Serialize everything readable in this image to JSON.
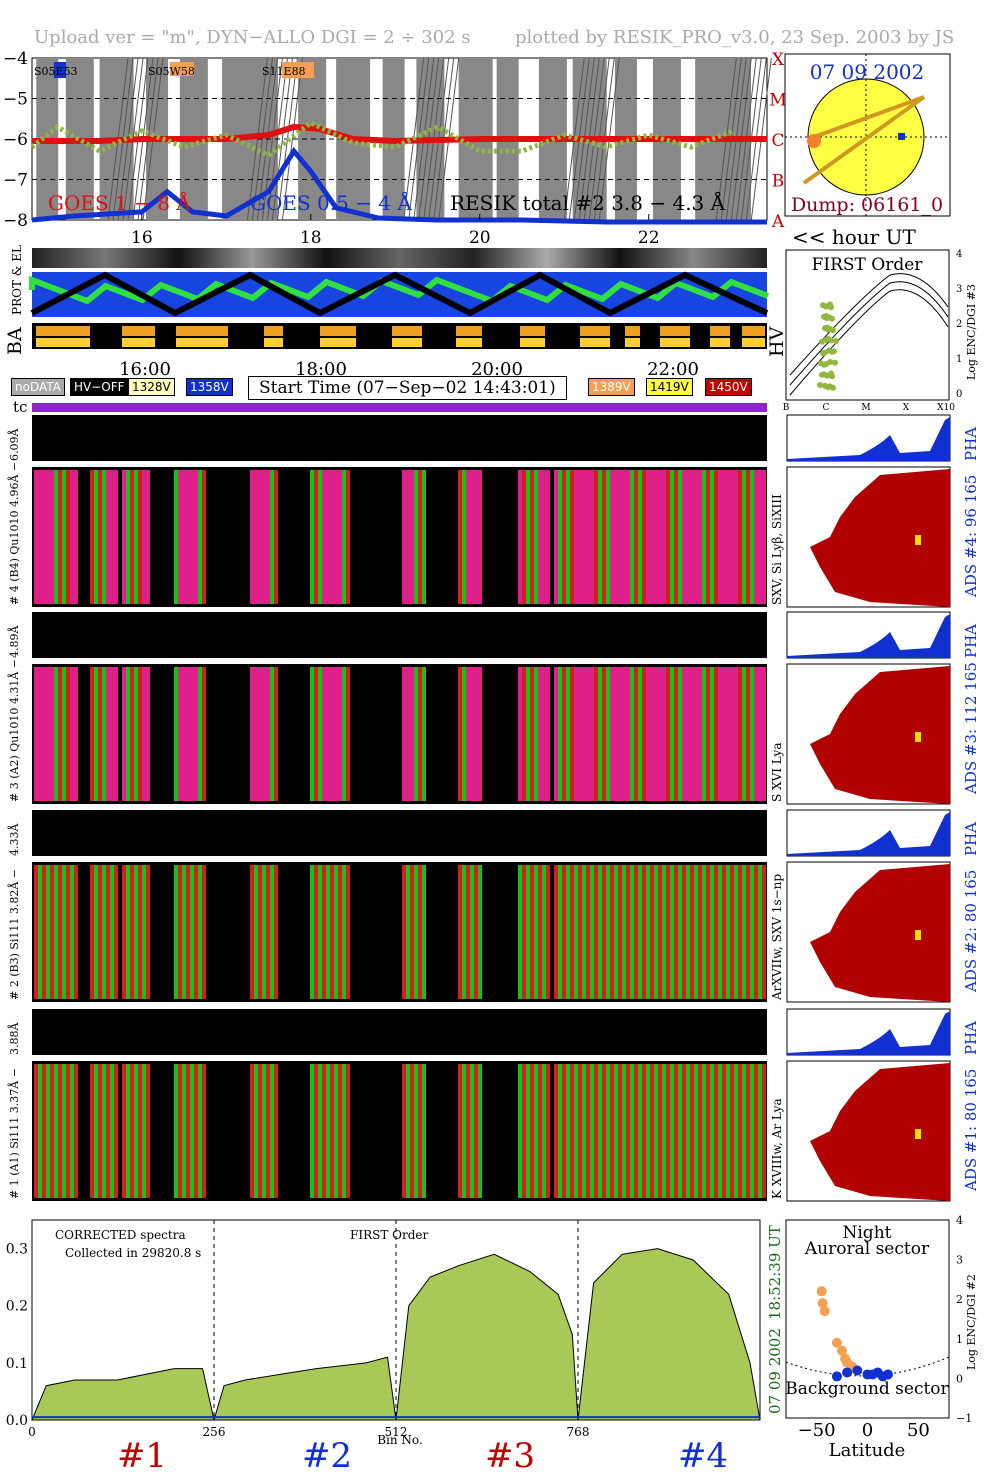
{
  "header": {
    "left": "Upload ver = \"m\", DYN−ALLO DGI =   2 ÷ 302 s",
    "right": "plotted by RESIK_PRO_v3.0, 23 Sep. 2003 by JS"
  },
  "colors": {
    "goes18": "#e01010",
    "goes05": "#1030d0",
    "resik": "#90b840",
    "shade": "#888888",
    "adsred": "#b00000",
    "pha": "#1030d0",
    "spec": "#a8c858",
    "orange": "#f5a050",
    "yellowbox": "#f0e000"
  },
  "goes": {
    "yticks": [
      "−4",
      "−5",
      "−6",
      "−7",
      "−8"
    ],
    "classes": [
      "X",
      "M",
      "C",
      "B",
      "A"
    ],
    "xticks": [
      "16",
      "18",
      "20",
      "22"
    ],
    "ar_labels": [
      "S05E53",
      "S05W58",
      "S11E88"
    ],
    "label_goes18": "GOES 1 − 8 Å",
    "label_goes05": "GOES 0.5 − 4 Å",
    "label_resik": "RESIK total #2  3.8 − 4.3 Å",
    "hour_ut": "<< hour UT"
  },
  "sun": {
    "date": "07 09 2002",
    "dump": "Dump: 06161_0"
  },
  "hk": {
    "label_prot": "PROT & EL",
    "label_ba": "BA",
    "label_hv": "HV",
    "xticks": [
      "16:00",
      "18:00",
      "20:00",
      "22:00"
    ]
  },
  "legend": {
    "nodata": "noDATA",
    "hvoff": "HV−OFF",
    "v1": "1328V",
    "v2": "1358V",
    "start": "Start Time (07−Sep−02 14:43:01)",
    "v3": "1389V",
    "v4": "1419V",
    "v5": "1450V",
    "tc": "tc"
  },
  "first_order": {
    "title": "FIRST Order",
    "ylabel": "Log ENC/DGI #3",
    "yticks": [
      "4",
      "3",
      "2",
      "1",
      "0"
    ],
    "xticks": [
      "B",
      "C",
      "M",
      "X",
      "X10"
    ]
  },
  "channels": [
    {
      "pha_label": "6.09Å",
      "main_label": "# 4 (B4) Qu1010 4.96Å −",
      "side_label": "SXV, Si Lyβ, SiXIII",
      "ads": "ADS #4:   96 165",
      "pha": "PHA"
    },
    {
      "pha_label": "4.89Å",
      "main_label": "# 3 (A2) Qu1010 4.31Å −",
      "side_label": "S XVI Lya",
      "ads": "ADS #3:   112 165",
      "pha": "PHA"
    },
    {
      "pha_label": "4.33Å",
      "main_label": "# 2 (B3) Si111 3.82Å −",
      "side_label": "ArXVIIw, SXV 1s−np",
      "ads": "ADS #2:   80 165",
      "pha": "PHA"
    },
    {
      "pha_label": "3.88Å",
      "main_label": "# 1 (A1) Si111 3.37Å −",
      "side_label": "K XVIIIw, Ar Lya",
      "ads": "ADS #1:   80 165",
      "pha": "PHA"
    }
  ],
  "spectrum": {
    "title1": "CORRECTED spectra",
    "title2": "Collected in 29820.8 s",
    "title3": "FIRST Order",
    "yticks": [
      "0.3",
      "0.2",
      "0.1",
      "0.0"
    ],
    "xticks": [
      "0",
      "256",
      "512",
      "768"
    ],
    "xlabel": "Bin No.",
    "time": "18:52:39 UT",
    "date": "07 09 2002",
    "channels": [
      "#1",
      "#2",
      "#3",
      "#4"
    ]
  },
  "latitude": {
    "title1": "Night",
    "title2": "Auroral sector",
    "bottom": "Background sector",
    "xlabel": "Latitude",
    "ylabel": "Log ENC/DGI #2",
    "xticks": [
      "−50",
      "0",
      "50"
    ],
    "yticks": [
      "4",
      "3",
      "2",
      "1",
      "0",
      "−1"
    ]
  },
  "chart_data": [
    {
      "type": "line",
      "title": "",
      "xlabel": "hour UT",
      "ylabel": "",
      "x_range": [
        14.7,
        23.4
      ],
      "ylim": [
        -8,
        -4
      ],
      "series": [
        {
          "name": "GOES 1 − 8 Å",
          "x": [
            14.7,
            15.5,
            16.0,
            16.5,
            17.0,
            17.5,
            17.8,
            18.1,
            18.5,
            19.0,
            20.0,
            20.5,
            21.0,
            21.5,
            22.0,
            22.5,
            23.0,
            23.4
          ],
          "y": [
            -6.05,
            -6.05,
            -6.0,
            -6.0,
            -6.0,
            -5.9,
            -5.7,
            -5.75,
            -6.0,
            -6.05,
            -6.0,
            -6.0,
            -6.0,
            -6.0,
            -6.0,
            -6.0,
            -6.0,
            -6.0
          ]
        },
        {
          "name": "GOES 0.5 − 4 Å",
          "x": [
            14.7,
            15.2,
            16.0,
            16.3,
            16.6,
            17.0,
            17.5,
            17.8,
            18.0,
            18.3,
            18.8,
            19.5,
            20.5,
            21.5,
            22.5,
            23.4
          ],
          "y": [
            -8.0,
            -7.9,
            -7.8,
            -7.3,
            -7.8,
            -7.9,
            -7.3,
            -6.3,
            -6.8,
            -7.7,
            -7.95,
            -8.0,
            -8.0,
            -8.05,
            -8.05,
            -8.05
          ]
        },
        {
          "name": "RESIK total #2  3.8 − 4.3 Å",
          "x": [
            14.7,
            15.0,
            15.5,
            16.0,
            16.5,
            17.0,
            17.5,
            18.0,
            18.5,
            19.0,
            19.5,
            20.0,
            20.5,
            21.0,
            21.5,
            22.0,
            22.5,
            23.0
          ],
          "y": [
            -6.2,
            -5.7,
            -6.3,
            -5.8,
            -6.2,
            -5.9,
            -6.4,
            -5.6,
            -6.1,
            -6.2,
            -5.7,
            -6.3,
            -6.3,
            -5.9,
            -6.2,
            -5.9,
            -6.2,
            -5.8
          ]
        }
      ]
    },
    {
      "type": "area",
      "title": "CORRECTED spectra",
      "xlabel": "Bin No.",
      "ylabel": "",
      "x_range": [
        0,
        1024
      ],
      "ylim": [
        0,
        0.35
      ],
      "series": [
        {
          "name": "FIRST Order",
          "x": [
            0,
            20,
            60,
            120,
            200,
            240,
            256,
            270,
            300,
            350,
            400,
            470,
            500,
            512,
            530,
            560,
            600,
            650,
            700,
            740,
            760,
            768,
            790,
            830,
            880,
            930,
            980,
            1010,
            1024
          ],
          "y": [
            0.0,
            0.06,
            0.07,
            0.07,
            0.09,
            0.09,
            0.0,
            0.06,
            0.07,
            0.08,
            0.09,
            0.1,
            0.11,
            0.0,
            0.2,
            0.25,
            0.27,
            0.29,
            0.26,
            0.22,
            0.15,
            0.0,
            0.24,
            0.29,
            0.3,
            0.28,
            0.22,
            0.1,
            0.0
          ]
        }
      ]
    },
    {
      "type": "scatter",
      "title": "",
      "xlabel": "Latitude",
      "ylabel": "Log ENC/DGI #2",
      "xlim": [
        -80,
        80
      ],
      "ylim": [
        -1,
        4
      ],
      "series": [
        {
          "name": "Auroral sector",
          "x": [
            -45,
            -44,
            -42,
            -30,
            -25,
            -22,
            -20,
            -15
          ],
          "y": [
            2.2,
            1.9,
            1.7,
            0.9,
            0.7,
            0.5,
            0.4,
            0.3
          ]
        },
        {
          "name": "Background sector",
          "x": [
            -30,
            -20,
            -10,
            0,
            5,
            10,
            15,
            20
          ],
          "y": [
            0.05,
            0.15,
            0.2,
            0.1,
            0.1,
            0.15,
            0.05,
            0.1
          ]
        }
      ]
    }
  ]
}
